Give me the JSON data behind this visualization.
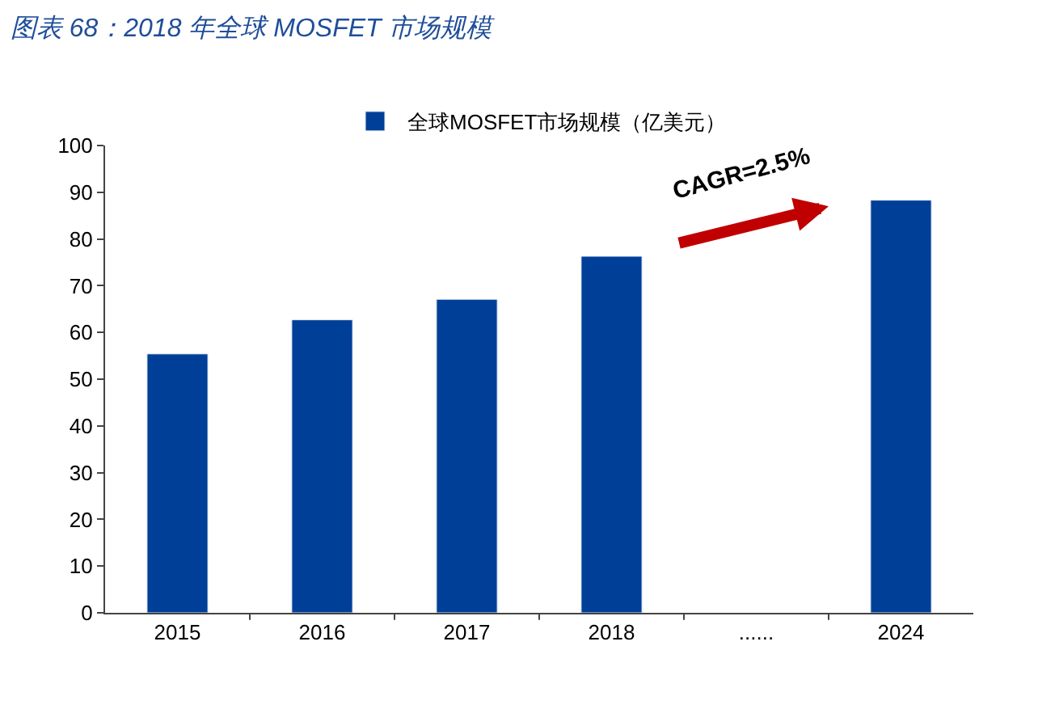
{
  "chart_data": {
    "type": "bar",
    "title": "图表 68：2018 年全球 MOSFET 市场规模",
    "categories": [
      "2015",
      "2016",
      "2017",
      "2018",
      "......",
      "2024"
    ],
    "series": [
      {
        "name": "全球MOSFET市场规模（亿美元）",
        "color": "#003f98",
        "values": [
          55.4,
          62.7,
          67.1,
          76.3,
          null,
          88.3
        ]
      }
    ],
    "ylim": [
      0,
      100
    ],
    "yticks": [
      0,
      10,
      20,
      30,
      40,
      50,
      60,
      70,
      80,
      90,
      100
    ],
    "annotations": [
      "CAGR=2.5%"
    ],
    "legend": "top"
  }
}
